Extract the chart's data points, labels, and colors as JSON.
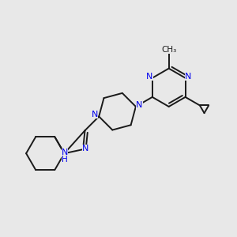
{
  "background_color": "#e8e8e8",
  "bond_color": "#1a1a1a",
  "nitrogen_color": "#0000ee",
  "bond_width": 1.4,
  "figsize": [
    3.0,
    3.0
  ],
  "dpi": 100,
  "xlim": [
    0,
    10
  ],
  "ylim": [
    0,
    10
  ]
}
